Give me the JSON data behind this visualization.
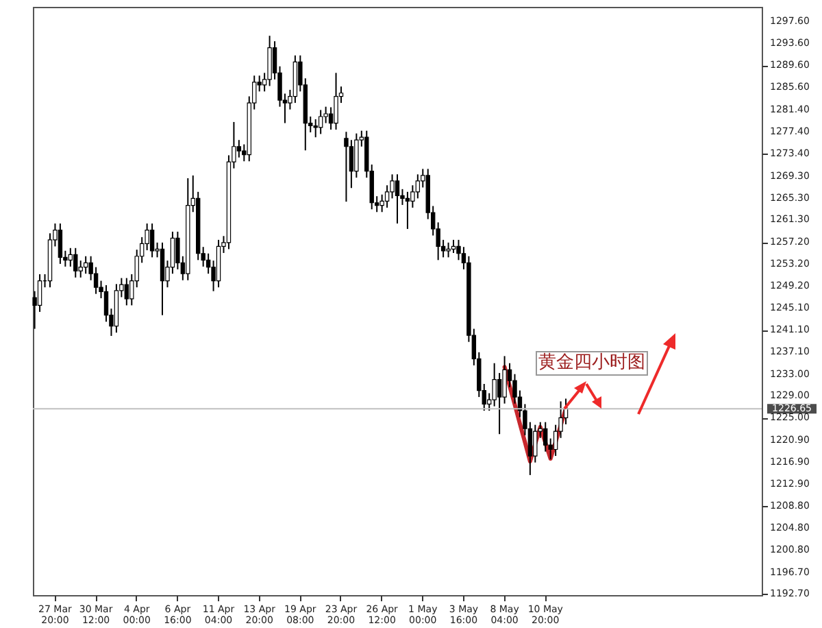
{
  "chart_data": {
    "type": "candlestick",
    "categories": [
      null,
      null,
      null,
      null,
      "27 Mar 20:00",
      null,
      null,
      null,
      null,
      null,
      null,
      null,
      "30 Mar 12:00",
      null,
      null,
      null,
      null,
      null,
      null,
      null,
      "4 Apr 00:00",
      null,
      null,
      null,
      null,
      null,
      null,
      null,
      "6 Apr 16:00",
      null,
      null,
      null,
      null,
      null,
      null,
      null,
      "11 Apr 04:00",
      null,
      null,
      null,
      null,
      null,
      null,
      null,
      "13 Apr 20:00",
      null,
      null,
      null,
      null,
      null,
      null,
      null,
      "19 Apr 08:00",
      null,
      null,
      null,
      null,
      null,
      null,
      null,
      "23 Apr 20:00",
      null,
      null,
      null,
      null,
      null,
      null,
      null,
      "26 Apr 12:00",
      null,
      null,
      null,
      null,
      null,
      null,
      null,
      "1 May 00:00",
      null,
      null,
      null,
      null,
      null,
      null,
      null,
      "3 May 16:00",
      null,
      null,
      null,
      null,
      null,
      null,
      null,
      "8 May 04:00",
      null,
      null,
      null,
      null,
      null,
      null,
      null,
      "10 May 20:00",
      null,
      null,
      null,
      null,
      null,
      null,
      null,
      null,
      null,
      null,
      null,
      null,
      null,
      null,
      null,
      null,
      null,
      null,
      null,
      null,
      null,
      null,
      null,
      null,
      null,
      null,
      null,
      null,
      null,
      null,
      null,
      null,
      null,
      null,
      null,
      null,
      null,
      null,
      null,
      null,
      null,
      null
    ],
    "ohlc": [
      [
        1247.0,
        1248.2,
        1241.3,
        1245.6
      ],
      [
        1245.6,
        1251.3,
        1244.4,
        1250.1
      ],
      [
        1250.1,
        1251.3,
        1248.9,
        1250.1
      ],
      [
        1250.1,
        1258.8,
        1248.9,
        1257.6
      ],
      [
        1257.6,
        1260.6,
        1256.4,
        1259.4
      ],
      [
        1259.4,
        1260.6,
        1253.2,
        1254.4
      ],
      [
        1254.4,
        1255.6,
        1252.7,
        1253.9
      ],
      [
        1253.9,
        1256.1,
        1252.7,
        1254.9
      ],
      [
        1254.9,
        1256.1,
        1250.7,
        1251.9
      ],
      [
        1251.9,
        1253.8,
        1250.7,
        1252.6
      ],
      [
        1252.6,
        1254.6,
        1251.4,
        1253.4
      ],
      [
        1253.4,
        1254.6,
        1250.2,
        1251.4
      ],
      [
        1251.4,
        1252.6,
        1247.7,
        1248.9
      ],
      [
        1248.9,
        1250.1,
        1246.9,
        1248.1
      ],
      [
        1248.1,
        1249.3,
        1242.6,
        1243.8
      ],
      [
        1243.8,
        1245.0,
        1240.0,
        1241.8
      ],
      [
        1241.8,
        1249.5,
        1240.6,
        1248.3
      ],
      [
        1248.3,
        1250.6,
        1247.1,
        1249.4
      ],
      [
        1249.4,
        1250.6,
        1245.6,
        1246.8
      ],
      [
        1246.8,
        1251.3,
        1245.6,
        1250.1
      ],
      [
        1250.1,
        1255.8,
        1248.9,
        1254.6
      ],
      [
        1254.6,
        1258.1,
        1253.4,
        1256.9
      ],
      [
        1256.9,
        1260.6,
        1255.7,
        1259.4
      ],
      [
        1259.4,
        1260.6,
        1254.4,
        1255.6
      ],
      [
        1255.6,
        1257.1,
        1254.4,
        1255.9
      ],
      [
        1255.9,
        1257.1,
        1243.8,
        1250.1
      ],
      [
        1250.1,
        1253.8,
        1248.9,
        1252.6
      ],
      [
        1252.6,
        1259.1,
        1251.4,
        1257.9
      ],
      [
        1257.9,
        1259.1,
        1252.2,
        1253.4
      ],
      [
        1253.4,
        1254.6,
        1250.2,
        1251.4
      ],
      [
        1251.4,
        1268.9,
        1250.2,
        1263.9
      ],
      [
        1263.9,
        1269.4,
        1262.7,
        1265.2
      ],
      [
        1265.2,
        1266.4,
        1253.9,
        1255.1
      ],
      [
        1255.1,
        1256.3,
        1252.7,
        1253.9
      ],
      [
        1253.9,
        1255.1,
        1251.4,
        1252.6
      ],
      [
        1252.6,
        1253.8,
        1248.2,
        1250.1
      ],
      [
        1250.1,
        1257.6,
        1248.9,
        1256.4
      ],
      [
        1256.4,
        1258.3,
        1255.2,
        1257.1
      ],
      [
        1257.1,
        1273.1,
        1255.9,
        1271.9
      ],
      [
        1271.9,
        1279.2,
        1270.7,
        1274.7
      ],
      [
        1274.7,
        1275.9,
        1272.7,
        1273.9
      ],
      [
        1273.9,
        1275.1,
        1272.0,
        1273.2
      ],
      [
        1273.2,
        1283.9,
        1272.0,
        1282.7
      ],
      [
        1282.7,
        1287.7,
        1281.5,
        1286.5
      ],
      [
        1286.5,
        1287.7,
        1284.8,
        1286.0
      ],
      [
        1286.0,
        1288.2,
        1284.8,
        1287.0
      ],
      [
        1287.0,
        1295.0,
        1285.8,
        1292.8
      ],
      [
        1292.8,
        1294.0,
        1287.0,
        1288.2
      ],
      [
        1288.2,
        1289.4,
        1282.0,
        1283.2
      ],
      [
        1283.2,
        1284.4,
        1279.0,
        1282.7
      ],
      [
        1282.7,
        1285.1,
        1281.5,
        1283.9
      ],
      [
        1283.9,
        1291.4,
        1282.7,
        1290.2
      ],
      [
        1290.2,
        1291.4,
        1284.8,
        1286.0
      ],
      [
        1286.0,
        1287.2,
        1274.0,
        1279.0
      ],
      [
        1279.0,
        1280.2,
        1277.3,
        1278.5
      ],
      [
        1278.5,
        1279.7,
        1276.4,
        1278.2
      ],
      [
        1278.2,
        1281.4,
        1277.0,
        1280.2
      ],
      [
        1280.2,
        1282.0,
        1279.0,
        1280.7
      ],
      [
        1280.7,
        1281.9,
        1277.8,
        1279.0
      ],
      [
        1279.0,
        1288.2,
        1277.8,
        1283.9
      ],
      [
        1283.9,
        1285.7,
        1282.7,
        1284.5
      ],
      [
        1276.2,
        1277.4,
        1264.6,
        1274.7
      ],
      [
        1274.7,
        1275.9,
        1267.1,
        1270.2
      ],
      [
        1270.2,
        1277.1,
        1269.0,
        1275.9
      ],
      [
        1275.9,
        1277.6,
        1274.7,
        1276.4
      ],
      [
        1276.4,
        1277.6,
        1269.0,
        1270.2
      ],
      [
        1270.2,
        1271.4,
        1263.2,
        1264.4
      ],
      [
        1264.4,
        1265.6,
        1262.7,
        1263.9
      ],
      [
        1263.9,
        1265.9,
        1262.7,
        1264.7
      ],
      [
        1264.7,
        1267.6,
        1263.5,
        1266.4
      ],
      [
        1266.4,
        1269.6,
        1265.2,
        1268.4
      ],
      [
        1268.4,
        1269.6,
        1260.6,
        1265.7
      ],
      [
        1265.7,
        1266.9,
        1264.0,
        1265.2
      ],
      [
        1265.2,
        1266.4,
        1259.6,
        1264.7
      ],
      [
        1264.7,
        1267.6,
        1263.5,
        1266.4
      ],
      [
        1266.4,
        1269.6,
        1265.2,
        1268.4
      ],
      [
        1268.4,
        1270.6,
        1267.2,
        1269.4
      ],
      [
        1269.4,
        1270.6,
        1261.4,
        1262.6
      ],
      [
        1262.6,
        1263.8,
        1258.4,
        1259.6
      ],
      [
        1259.6,
        1260.8,
        1253.9,
        1256.4
      ],
      [
        1256.4,
        1257.6,
        1254.4,
        1255.6
      ],
      [
        1255.6,
        1257.1,
        1254.4,
        1255.9
      ],
      [
        1255.9,
        1257.6,
        1255.2,
        1256.4
      ],
      [
        1256.4,
        1257.6,
        1253.9,
        1255.1
      ],
      [
        1255.1,
        1256.3,
        1252.2,
        1253.4
      ],
      [
        1253.4,
        1254.6,
        1238.9,
        1240.1
      ],
      [
        1240.1,
        1241.3,
        1234.6,
        1235.8
      ],
      [
        1235.8,
        1237.0,
        1228.8,
        1230.0
      ],
      [
        1230.0,
        1231.2,
        1226.3,
        1227.5
      ],
      [
        1227.5,
        1229.5,
        1226.3,
        1228.3
      ],
      [
        1228.3,
        1235.0,
        1227.1,
        1232.0
      ],
      [
        1232.0,
        1233.2,
        1222.0,
        1228.8
      ],
      [
        1228.8,
        1236.3,
        1227.6,
        1233.8
      ],
      [
        1233.8,
        1235.0,
        1230.6,
        1231.8
      ],
      [
        1231.8,
        1233.0,
        1227.6,
        1228.8
      ],
      [
        1228.8,
        1230.0,
        1225.1,
        1226.3
      ],
      [
        1226.3,
        1227.5,
        1221.8,
        1223.0
      ],
      [
        1223.0,
        1224.2,
        1214.5,
        1218.0
      ],
      [
        1218.0,
        1223.7,
        1216.8,
        1222.5
      ],
      [
        1222.5,
        1224.2,
        1221.3,
        1223.0
      ],
      [
        1223.0,
        1224.2,
        1218.8,
        1220.0
      ],
      [
        1220.0,
        1221.2,
        1217.4,
        1219.2
      ],
      [
        1219.2,
        1223.7,
        1218.0,
        1222.5
      ],
      [
        1222.5,
        1228.0,
        1221.3,
        1225.0
      ],
      [
        1225.0,
        1228.5,
        1223.8,
        1226.7
      ],
      null,
      null,
      null,
      null,
      null,
      null,
      null,
      null,
      null,
      null,
      null,
      null,
      null,
      null,
      null,
      null,
      null,
      null,
      null,
      null,
      null,
      null,
      null,
      null,
      null,
      null,
      null,
      null,
      null,
      null,
      null,
      null,
      null,
      null,
      null,
      null,
      null,
      null
    ],
    "series": [
      {
        "type": "line",
        "color": "#c8282d",
        "values": [
          null,
          null,
          null,
          null,
          null,
          null,
          null,
          null,
          null,
          null,
          null,
          null,
          null,
          null,
          null,
          null,
          null,
          null,
          null,
          null,
          null,
          null,
          null,
          null,
          null,
          null,
          null,
          null,
          null,
          null,
          null,
          null,
          null,
          null,
          null,
          null,
          null,
          null,
          null,
          null,
          null,
          null,
          null,
          null,
          null,
          null,
          null,
          null,
          null,
          null,
          null,
          null,
          null,
          null,
          null,
          null,
          null,
          null,
          null,
          null,
          null,
          null,
          null,
          null,
          null,
          null,
          null,
          null,
          null,
          null,
          null,
          null,
          null,
          null,
          null,
          null,
          null,
          null,
          null,
          null,
          null,
          null,
          null,
          null,
          null,
          null,
          null,
          null,
          null,
          null,
          null,
          null,
          1234.3,
          1230.8,
          1227.4,
          1223.9,
          1220.5,
          1217.0,
          1220.2,
          1223.3,
          1220.4,
          1217.5,
          1220.6,
          1223.6,
          1226.7,
          null,
          null,
          null,
          null,
          null,
          null,
          null,
          null,
          null,
          null,
          null,
          null,
          null,
          null,
          null,
          null,
          null,
          null,
          null,
          null,
          null,
          null,
          null,
          null,
          null,
          null,
          null,
          null,
          null,
          null,
          null,
          null,
          null,
          null,
          null,
          null,
          null,
          null
        ]
      }
    ],
    "ylim": [
      1192.5,
      1300.3
    ],
    "yticks": [
      {
        "value": 1297.6,
        "label": "1297.60"
      },
      {
        "value": 1293.6,
        "label": "1293.60"
      },
      {
        "value": 1289.6,
        "label": "1289.60"
      },
      {
        "value": 1285.6,
        "label": "1285.60"
      },
      {
        "value": 1281.4,
        "label": "1281.40"
      },
      {
        "value": 1277.4,
        "label": "1277.40"
      },
      {
        "value": 1273.4,
        "label": "1273.40"
      },
      {
        "value": 1269.3,
        "label": "1269.30"
      },
      {
        "value": 1265.3,
        "label": "1265.30"
      },
      {
        "value": 1261.3,
        "label": "1261.30"
      },
      {
        "value": 1257.2,
        "label": "1257.20"
      },
      {
        "value": 1253.2,
        "label": "1253.20"
      },
      {
        "value": 1249.2,
        "label": "1249.20"
      },
      {
        "value": 1245.1,
        "label": "1245.10"
      },
      {
        "value": 1241.1,
        "label": "1241.10"
      },
      {
        "value": 1237.1,
        "label": "1237.10"
      },
      {
        "value": 1233.0,
        "label": "1233.00"
      },
      {
        "value": 1229.0,
        "label": "1229.00"
      },
      {
        "value": 1225.0,
        "label": "1225.00"
      },
      {
        "value": 1220.9,
        "label": "1220.90"
      },
      {
        "value": 1216.9,
        "label": "1216.90"
      },
      {
        "value": 1212.9,
        "label": "1212.90"
      },
      {
        "value": 1208.8,
        "label": "1208.80"
      },
      {
        "value": 1204.8,
        "label": "1204.80"
      },
      {
        "value": 1200.8,
        "label": "1200.80"
      },
      {
        "value": 1196.7,
        "label": "1196.70"
      },
      {
        "value": 1192.7,
        "label": "1192.70"
      }
    ],
    "ref_lines": [
      {
        "axis": "y",
        "value": 1226.65,
        "label": "1226.65",
        "color": "#c0c0c0"
      }
    ],
    "annotations": [
      "黄金四小时图"
    ]
  }
}
